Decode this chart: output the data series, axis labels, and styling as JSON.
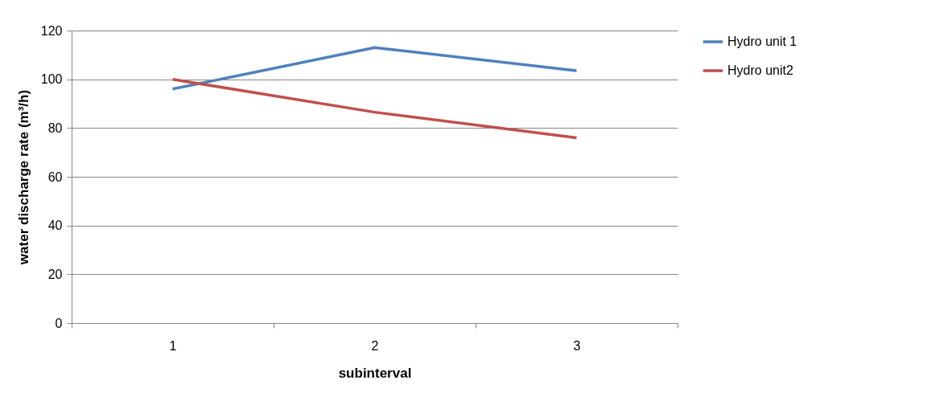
{
  "chart_data": {
    "type": "line",
    "xlabel": "subinterval",
    "ylabel": "water discharge rate (m³/h)",
    "categories": [
      "1",
      "2",
      "3"
    ],
    "series": [
      {
        "name": "Hydro unit 1",
        "color": "#4f81bd",
        "values": [
          96,
          113,
          103.5
        ]
      },
      {
        "name": "Hydro unit2",
        "color": "#c0504d",
        "values": [
          100,
          86.5,
          76
        ]
      }
    ],
    "ylim": [
      0,
      120
    ],
    "yticks": [
      0,
      20,
      40,
      60,
      80,
      100,
      120
    ],
    "grid": "y",
    "legend": "right",
    "marker": "none",
    "line_style": "solid"
  }
}
